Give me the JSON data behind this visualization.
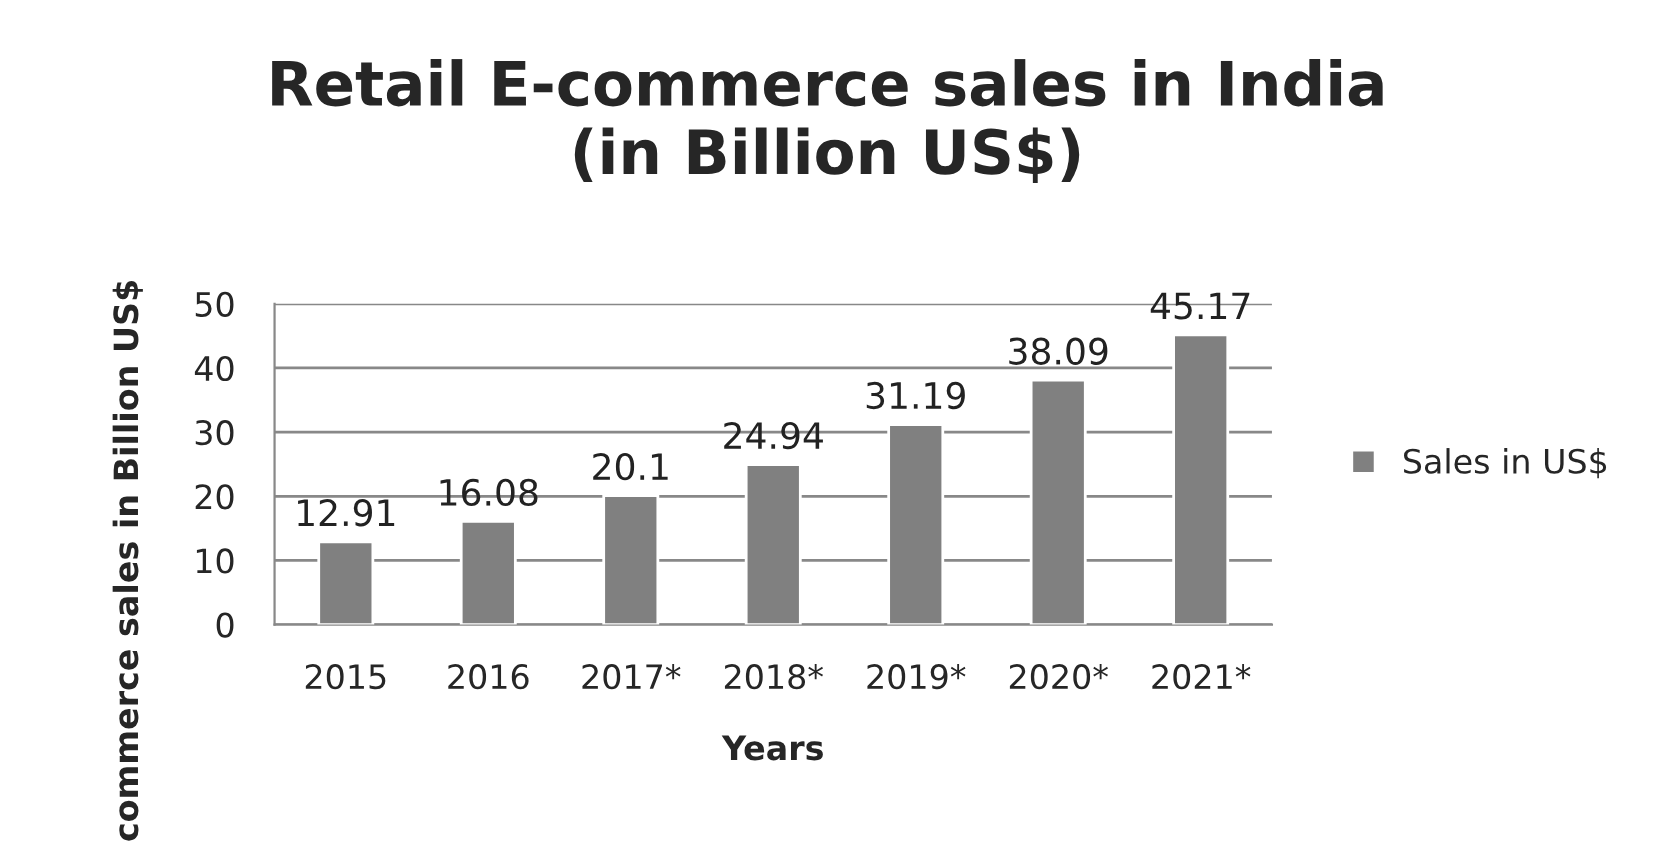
{
  "chart_data": {
    "type": "bar",
    "title": "Retail E-commerce sales in India\n(in Billion US$)",
    "xlabel": "Years",
    "ylabel": "commerce sales in Billion US$",
    "categories": [
      "2015",
      "2016",
      "2017*",
      "2018*",
      "2019*",
      "2020*",
      "2021*"
    ],
    "series": [
      {
        "name": "Sales in US$",
        "color": "#808080",
        "values": [
          12.91,
          16.08,
          20.1,
          24.94,
          31.19,
          38.09,
          45.17
        ]
      }
    ],
    "ylim": [
      0,
      50
    ],
    "yticks": [
      0,
      10,
      20,
      30,
      40,
      50
    ],
    "grid": "y",
    "legend": "right",
    "data_labels": true
  }
}
